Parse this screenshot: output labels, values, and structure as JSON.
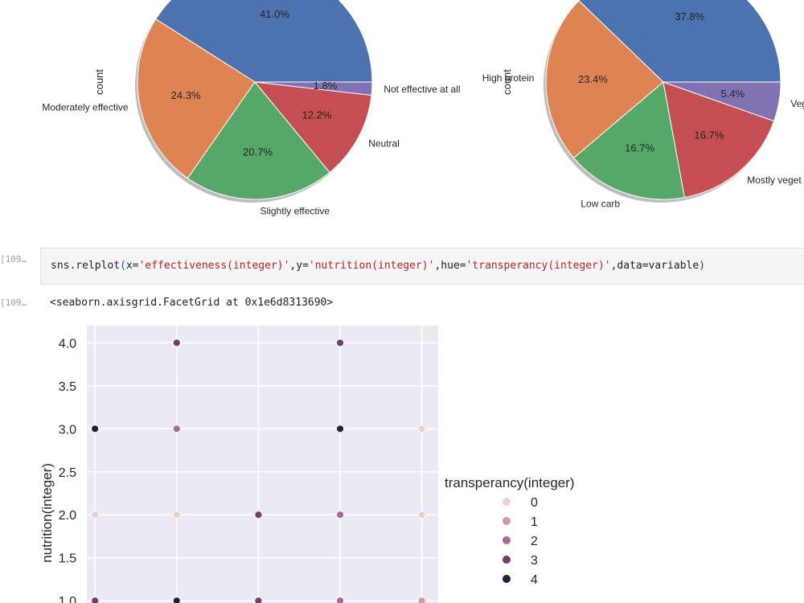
{
  "notebook": {
    "cell_in_prompt": "[109…",
    "cell_out_prompt": "[109…",
    "code": {
      "prefix": "sns.relplot",
      "open": "(",
      "a1": "x=",
      "s1": "'effectiveness(integer)'",
      "a2": ",y=",
      "s2": "'nutrition(integer)'",
      "a3": ",hue=",
      "s3": "'transperancy(integer)'",
      "a4": ",data=variable",
      "close": ")"
    },
    "output_text": "<seaborn.axisgrid.FacetGrid at 0x1e6d8313690>"
  },
  "chart_data": [
    {
      "type": "pie",
      "ylabel": "count",
      "slices": [
        {
          "label": "",
          "pct_label": "41.0%",
          "value": 41.0,
          "color": "#4c72b0"
        },
        {
          "label": "Moderately effective",
          "pct_label": "24.3%",
          "value": 24.3,
          "color": "#dd8452"
        },
        {
          "label": "Slightly effective",
          "pct_label": "20.7%",
          "value": 20.7,
          "color": "#55a868"
        },
        {
          "label": "Neutral",
          "pct_label": "12.2%",
          "value": 12.2,
          "color": "#c44e52"
        },
        {
          "label": "Not effective at all",
          "pct_label": "1.8%",
          "value": 1.8,
          "color": "#8172b3"
        }
      ]
    },
    {
      "type": "pie",
      "ylabel": "count",
      "slices": [
        {
          "label": "",
          "pct_label": "37.8%",
          "value": 37.8,
          "color": "#4c72b0"
        },
        {
          "label": "High protein",
          "pct_label": "23.4%",
          "value": 23.4,
          "color": "#dd8452"
        },
        {
          "label": "Low carb",
          "pct_label": "16.7%",
          "value": 16.7,
          "color": "#55a868"
        },
        {
          "label": "Mostly veget",
          "pct_label": "16.7%",
          "value": 16.7,
          "color": "#c44e52"
        },
        {
          "label": "Veg",
          "pct_label": "5.4%",
          "value": 5.4,
          "color": "#8172b3"
        }
      ]
    },
    {
      "type": "scatter",
      "xlabel": "",
      "ylabel": "nutrition(integer)",
      "yticks": [
        "1.0",
        "1.5",
        "2.0",
        "2.5",
        "3.0",
        "3.5",
        "4.0"
      ],
      "ylim": [
        0.88,
        4.2
      ],
      "xlim": [
        -0.1,
        4.2
      ],
      "grid": true,
      "legend_title": "transperancy(integer)",
      "legend_placement": "right",
      "hue_levels": [
        {
          "label": "0",
          "value": 0,
          "color": "#efd0c6"
        },
        {
          "label": "1",
          "value": 1,
          "color": "#d496a8"
        },
        {
          "label": "2",
          "value": 2,
          "color": "#ad6696"
        },
        {
          "label": "3",
          "value": 3,
          "color": "#713e6f"
        },
        {
          "label": "4",
          "value": 4,
          "color": "#2c1c38"
        }
      ],
      "points": [
        {
          "x": 0,
          "y": 3,
          "hue": 4
        },
        {
          "x": 0,
          "y": 2,
          "hue": 0
        },
        {
          "x": 0,
          "y": 1,
          "hue": 3
        },
        {
          "x": 1,
          "y": 4,
          "hue": 3
        },
        {
          "x": 1,
          "y": 3,
          "hue": 2
        },
        {
          "x": 1,
          "y": 2,
          "hue": 0
        },
        {
          "x": 1,
          "y": 1,
          "hue": 4
        },
        {
          "x": 2,
          "y": 2,
          "hue": 3
        },
        {
          "x": 2,
          "y": 1,
          "hue": 3
        },
        {
          "x": 3,
          "y": 4,
          "hue": 3
        },
        {
          "x": 3,
          "y": 3,
          "hue": 4
        },
        {
          "x": 3,
          "y": 2,
          "hue": 2
        },
        {
          "x": 3,
          "y": 1,
          "hue": 2
        },
        {
          "x": 4,
          "y": 3,
          "hue": 0
        },
        {
          "x": 4,
          "y": 2,
          "hue": 0
        },
        {
          "x": 4,
          "y": 1,
          "hue": 1
        }
      ]
    }
  ]
}
